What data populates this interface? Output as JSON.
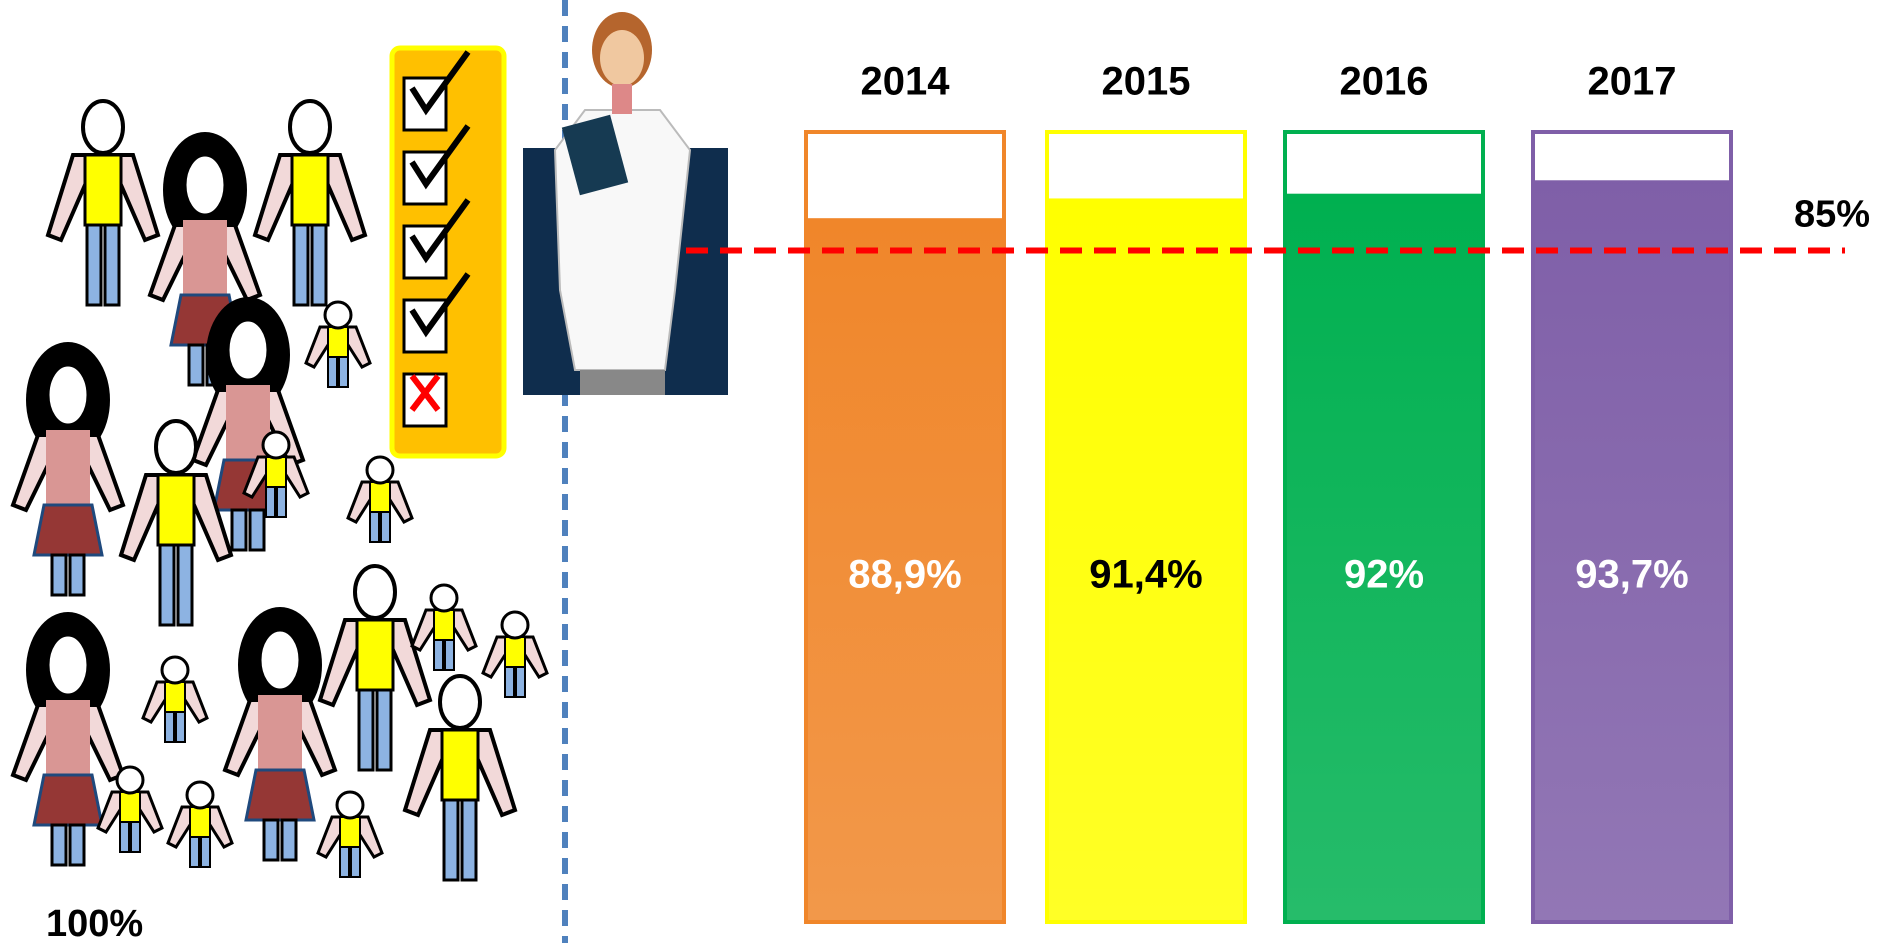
{
  "chart_data": {
    "type": "bar",
    "categories": [
      "2014",
      "2015",
      "2016",
      "2017"
    ],
    "values": [
      88.9,
      91.4,
      92,
      93.7
    ],
    "value_labels": [
      "88,9%",
      "91,4%",
      "92%",
      "93,7%"
    ],
    "colors": [
      "#f0862a",
      "#ffff00",
      "#00b050",
      "#7f5fa8"
    ],
    "value_label_colors": [
      "#ffffff",
      "#000000",
      "#ffffff",
      "#ffffff"
    ],
    "ylim": [
      0,
      100
    ],
    "reference_line": {
      "value": 85,
      "label": "85%",
      "color": "#ff0000"
    },
    "annotations": [
      "100%"
    ]
  }
}
